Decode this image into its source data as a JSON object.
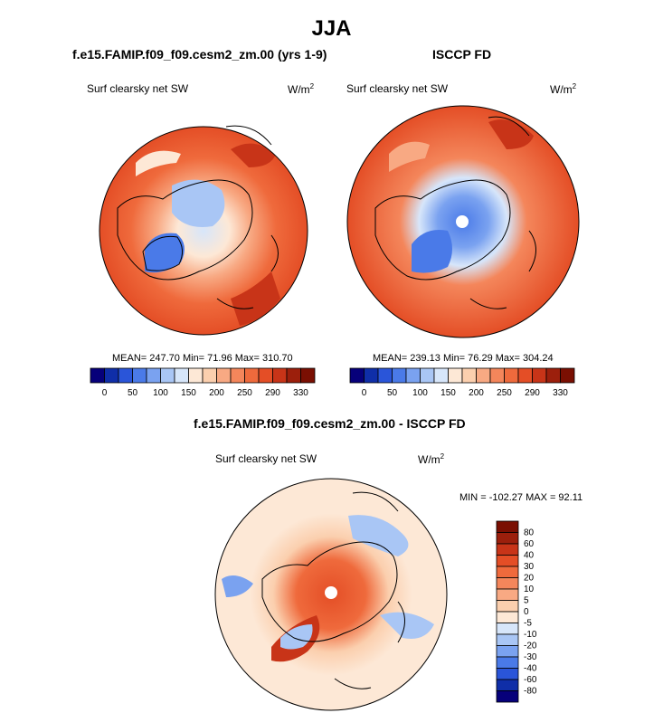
{
  "page": {
    "title": "JJA"
  },
  "colors": {
    "blues": [
      "#06007a",
      "#0f2ea8",
      "#2a55d9",
      "#4a7ae8",
      "#7aa2f0",
      "#a9c6f5",
      "#d7e6fa"
    ],
    "reds": [
      "#fde8d6",
      "#fbcfae",
      "#f8a983",
      "#f4865b",
      "#ef6a3c",
      "#e44e26",
      "#c83418",
      "#9c1f0c",
      "#7a0f02"
    ]
  },
  "panels": [
    {
      "title": "f.e15.FAMIP.f09_f09.cesm2_zm.00 (yrs 1-9)",
      "variable": "Surf clearsky net SW",
      "units_base": "W/m",
      "units_exp": "2",
      "stats": "MEAN= 247.70  Min=  71.96  Max= 310.70",
      "colorbar_labels": [
        "0",
        "50",
        "100",
        "150",
        "200",
        "250",
        "290",
        "330"
      ]
    },
    {
      "title": "ISCCP FD",
      "variable": "Surf clearsky net SW",
      "units_base": "W/m",
      "units_exp": "2",
      "stats": "MEAN= 239.13  Min=  76.29  Max= 304.24",
      "colorbar_labels": [
        "0",
        "50",
        "100",
        "150",
        "200",
        "250",
        "290",
        "330"
      ]
    },
    {
      "title": "f.e15.FAMIP.f09_f09.cesm2_zm.00 - ISCCP FD",
      "variable": "Surf clearsky net SW",
      "units_base": "W/m",
      "units_exp": "2",
      "stats": "MIN = -102.27 MAX =  92.11",
      "colorbar_labels": [
        "80",
        "60",
        "40",
        "30",
        "20",
        "10",
        "5",
        "0",
        "-5",
        "-10",
        "-20",
        "-30",
        "-40",
        "-60",
        "-80"
      ]
    }
  ]
}
